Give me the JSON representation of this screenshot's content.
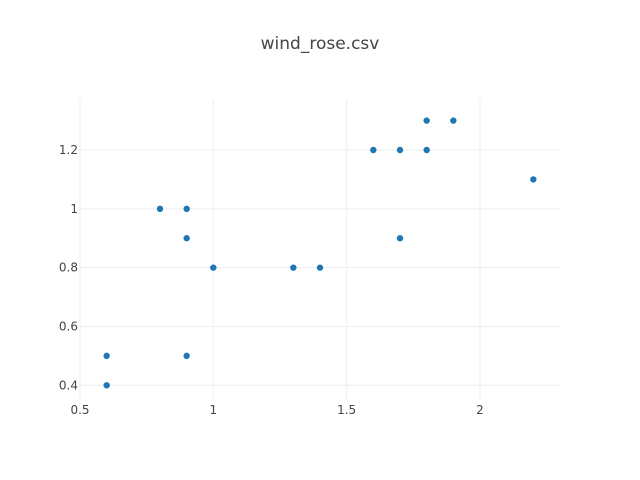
{
  "chart_data": {
    "type": "scatter",
    "title": "wind_rose.csv",
    "xlabel": "",
    "ylabel": "",
    "xlim": [
      0.5,
      2.3
    ],
    "ylim": [
      0.35,
      1.37
    ],
    "x_ticks": [
      0.5,
      1,
      1.5,
      2
    ],
    "x_tick_labels": [
      "0.5",
      "1",
      "1.5",
      "2"
    ],
    "y_ticks": [
      0.4,
      0.6,
      0.8,
      1,
      1.2
    ],
    "y_tick_labels": [
      "0.4",
      "0.6",
      "0.8",
      "1",
      "1.2"
    ],
    "grid": true,
    "marker_color": "#1f77b4",
    "series": [
      {
        "x": [
          0.6,
          0.6,
          0.8,
          0.9,
          0.9,
          0.9,
          1.0,
          1.3,
          1.4,
          1.6,
          1.7,
          1.7,
          1.8,
          1.8,
          1.9,
          2.2
        ],
        "y": [
          0.4,
          0.5,
          1.0,
          0.5,
          0.9,
          1.0,
          0.8,
          0.8,
          0.8,
          1.2,
          1.2,
          0.9,
          1.2,
          1.3,
          1.3,
          1.1
        ]
      }
    ]
  }
}
